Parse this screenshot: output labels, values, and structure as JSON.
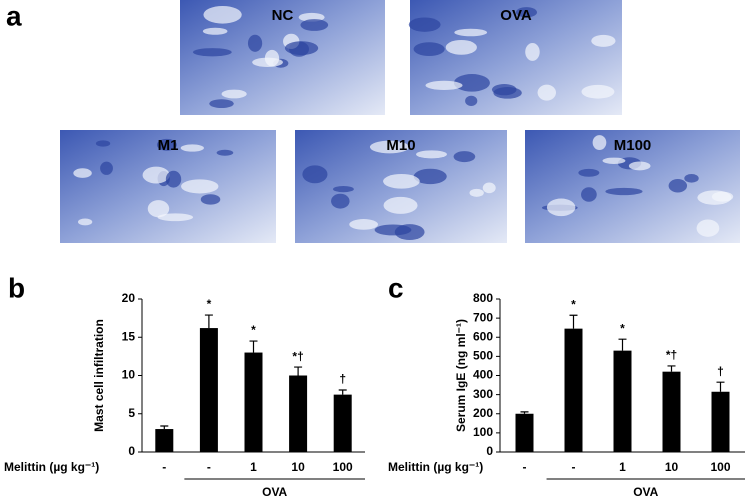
{
  "panel_a": {
    "label": "a",
    "images": [
      "NC",
      "OVA",
      "M1",
      "M10",
      "M100"
    ]
  },
  "chart_data": [
    {
      "type": "bar",
      "panel_label": "b",
      "ylabel": "Mast cell infiltration",
      "xlabel": "Melittin (µg kg⁻¹)",
      "categories": [
        "-",
        "-",
        "1",
        "10",
        "100"
      ],
      "group_label": "OVA",
      "values": [
        3,
        16.2,
        13,
        10,
        7.5
      ],
      "errors": [
        0.4,
        1.7,
        1.5,
        1.1,
        0.6
      ],
      "annotations": [
        null,
        "*",
        "*",
        "*†",
        "†"
      ],
      "color": "#000000",
      "ylim": [
        0,
        20
      ],
      "yticks": [
        0,
        5,
        10,
        15,
        20
      ]
    },
    {
      "type": "bar",
      "panel_label": "c",
      "ylabel": "Serum IgE (ng ml⁻¹)",
      "xlabel": "Melittin (µg kg⁻¹)",
      "categories": [
        "-",
        "-",
        "1",
        "10",
        "100"
      ],
      "group_label": "OVA",
      "values": [
        200,
        645,
        530,
        420,
        315
      ],
      "errors": [
        10,
        70,
        60,
        30,
        50
      ],
      "annotations": [
        null,
        "*",
        "*",
        "*†",
        "†"
      ],
      "color": "#000000",
      "ylim": [
        0,
        800
      ],
      "yticks": [
        0,
        100,
        200,
        300,
        400,
        500,
        600,
        700,
        800
      ]
    }
  ]
}
